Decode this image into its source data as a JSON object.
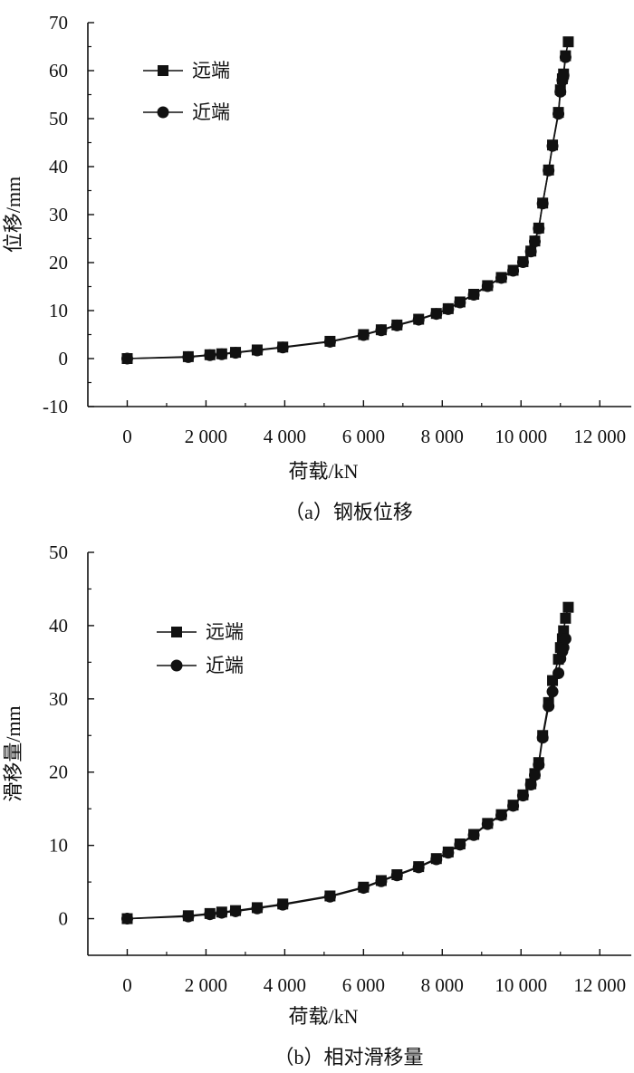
{
  "chart_data": [
    {
      "type": "line",
      "caption": "（a）钢板位移",
      "xlabel": "荷载/kN",
      "ylabel": "位移/mm",
      "xlim": [
        -1000,
        12800
      ],
      "ylim": [
        -10,
        70
      ],
      "xticks": [
        0,
        2000,
        4000,
        6000,
        8000,
        10000,
        12000
      ],
      "xtick_labels": [
        "0",
        "2 000",
        "4 000",
        "6 000",
        "8 000",
        "10 000",
        "12 000"
      ],
      "yticks": [
        -10,
        0,
        10,
        20,
        30,
        40,
        50,
        60,
        70
      ],
      "ytick_labels": [
        "-10",
        "0",
        "10",
        "20",
        "30",
        "40",
        "50",
        "60",
        "70"
      ],
      "legend_position": "top-left",
      "series": [
        {
          "name": "远端",
          "marker": "square",
          "color": "#111111",
          "x": [
            0,
            1550,
            2100,
            2400,
            2750,
            3300,
            3950,
            5150,
            6000,
            6450,
            6850,
            7400,
            7850,
            8150,
            8450,
            8800,
            9150,
            9500,
            9800,
            10050,
            10250,
            10350,
            10450,
            10550,
            10700,
            10800,
            10950,
            11000,
            11050,
            11080,
            11130,
            11200
          ],
          "y": [
            0,
            0.4,
            0.8,
            1.0,
            1.3,
            1.8,
            2.4,
            3.6,
            5.0,
            6.0,
            7.0,
            8.2,
            9.4,
            10.4,
            11.8,
            13.4,
            15.2,
            16.9,
            18.4,
            20.2,
            22.4,
            24.5,
            27.2,
            32.4,
            39.3,
            44.5,
            51.3,
            56.0,
            58.3,
            59.3,
            63.1,
            66.0
          ],
          "y_labeled_points_only": true
        },
        {
          "name": "近端",
          "marker": "circle",
          "color": "#111111",
          "x": [
            0,
            1550,
            2100,
            2400,
            2750,
            3300,
            3950,
            5150,
            6000,
            6450,
            6850,
            7400,
            7850,
            8150,
            8450,
            8800,
            9150,
            9500,
            9800,
            10050,
            10250,
            10350,
            10450,
            10550,
            10700,
            10800,
            10950,
            11000,
            11050,
            11080,
            11130
          ],
          "y": [
            0,
            0.3,
            0.7,
            0.9,
            1.2,
            1.7,
            2.3,
            3.5,
            4.9,
            5.9,
            6.9,
            8.1,
            9.3,
            10.3,
            11.7,
            13.3,
            15.1,
            16.8,
            18.3,
            20.1,
            22.3,
            24.4,
            27.1,
            32.3,
            39.2,
            44.3,
            51.0,
            55.6,
            58.0,
            59.0,
            62.8
          ]
        }
      ]
    },
    {
      "type": "line",
      "caption": "（b）相对滑移量",
      "xlabel": "荷载/kN",
      "ylabel": "滑移量/mm",
      "xlim": [
        -1000,
        12800
      ],
      "ylim": [
        -5,
        50
      ],
      "xticks": [
        0,
        2000,
        4000,
        6000,
        8000,
        10000,
        12000
      ],
      "xtick_labels": [
        "0",
        "2 000",
        "4 000",
        "6 000",
        "8 000",
        "10 000",
        "12 000"
      ],
      "yticks": [
        0,
        10,
        20,
        30,
        40,
        50
      ],
      "ytick_labels": [
        "0",
        "10",
        "20",
        "30",
        "40",
        "50"
      ],
      "legend_position": "top-left",
      "series": [
        {
          "name": "远端",
          "marker": "square",
          "color": "#111111",
          "x": [
            0,
            1550,
            2100,
            2400,
            2750,
            3300,
            3950,
            5150,
            6000,
            6450,
            6850,
            7400,
            7850,
            8150,
            8450,
            8800,
            9150,
            9500,
            9800,
            10050,
            10250,
            10350,
            10450,
            10550,
            10700,
            10800,
            10950,
            11000,
            11050,
            11080,
            11130,
            11200
          ],
          "y": [
            0,
            0.4,
            0.7,
            0.9,
            1.1,
            1.5,
            2.0,
            3.1,
            4.3,
            5.2,
            6.0,
            7.1,
            8.2,
            9.1,
            10.2,
            11.5,
            13.0,
            14.2,
            15.5,
            16.9,
            18.4,
            19.8,
            21.3,
            25.0,
            29.5,
            32.5,
            35.4,
            37.0,
            38.2,
            39.3,
            41.0,
            42.5
          ]
        },
        {
          "name": "近端",
          "marker": "circle",
          "color": "#111111",
          "x": [
            0,
            1550,
            2100,
            2400,
            2750,
            3300,
            3950,
            5150,
            6000,
            6450,
            6850,
            7400,
            7850,
            8150,
            8450,
            8800,
            9150,
            9500,
            9800,
            10050,
            10250,
            10350,
            10450,
            10550,
            10700,
            10800,
            10950,
            11000,
            11050,
            11080,
            11130
          ],
          "y": [
            0,
            0.3,
            0.6,
            0.8,
            1.0,
            1.4,
            1.9,
            3.0,
            4.2,
            5.1,
            5.9,
            7.0,
            8.1,
            9.0,
            10.1,
            11.4,
            12.9,
            14.1,
            15.4,
            16.8,
            18.3,
            19.6,
            21.0,
            24.7,
            29.0,
            31.0,
            33.5,
            35.5,
            36.5,
            37.0,
            38.2
          ]
        }
      ]
    }
  ]
}
